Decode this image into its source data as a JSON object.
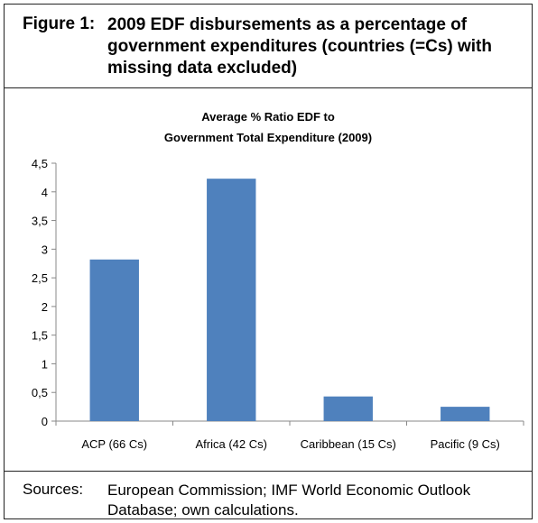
{
  "figure": {
    "label": "Figure 1:",
    "title": "2009 EDF disbursements as a percentage of government expenditures (countries (=Cs) with missing data excluded)"
  },
  "chart_data": {
    "type": "bar",
    "title_lines": [
      "Average % Ratio EDF to",
      "Government Total Expenditure (2009)"
    ],
    "categories": [
      "ACP (66 Cs)",
      "Africa (42 Cs)",
      "Caribbean (15 Cs)",
      "Pacific (9 Cs)"
    ],
    "values": [
      2.82,
      4.23,
      0.43,
      0.25
    ],
    "ylim": [
      0,
      4.5
    ],
    "yticks": [
      0,
      0.5,
      1,
      1.5,
      2,
      2.5,
      3,
      3.5,
      4,
      4.5
    ],
    "ytick_labels": [
      "0",
      "0,5",
      "1",
      "1,5",
      "2",
      "2,5",
      "3",
      "3,5",
      "4",
      "4,5"
    ],
    "bar_color": "#4f81bd",
    "grid": false,
    "legend": "none"
  },
  "sources": {
    "label": "Sources:",
    "text": "European Commission; IMF World Economic Outlook Database; own calculations."
  }
}
